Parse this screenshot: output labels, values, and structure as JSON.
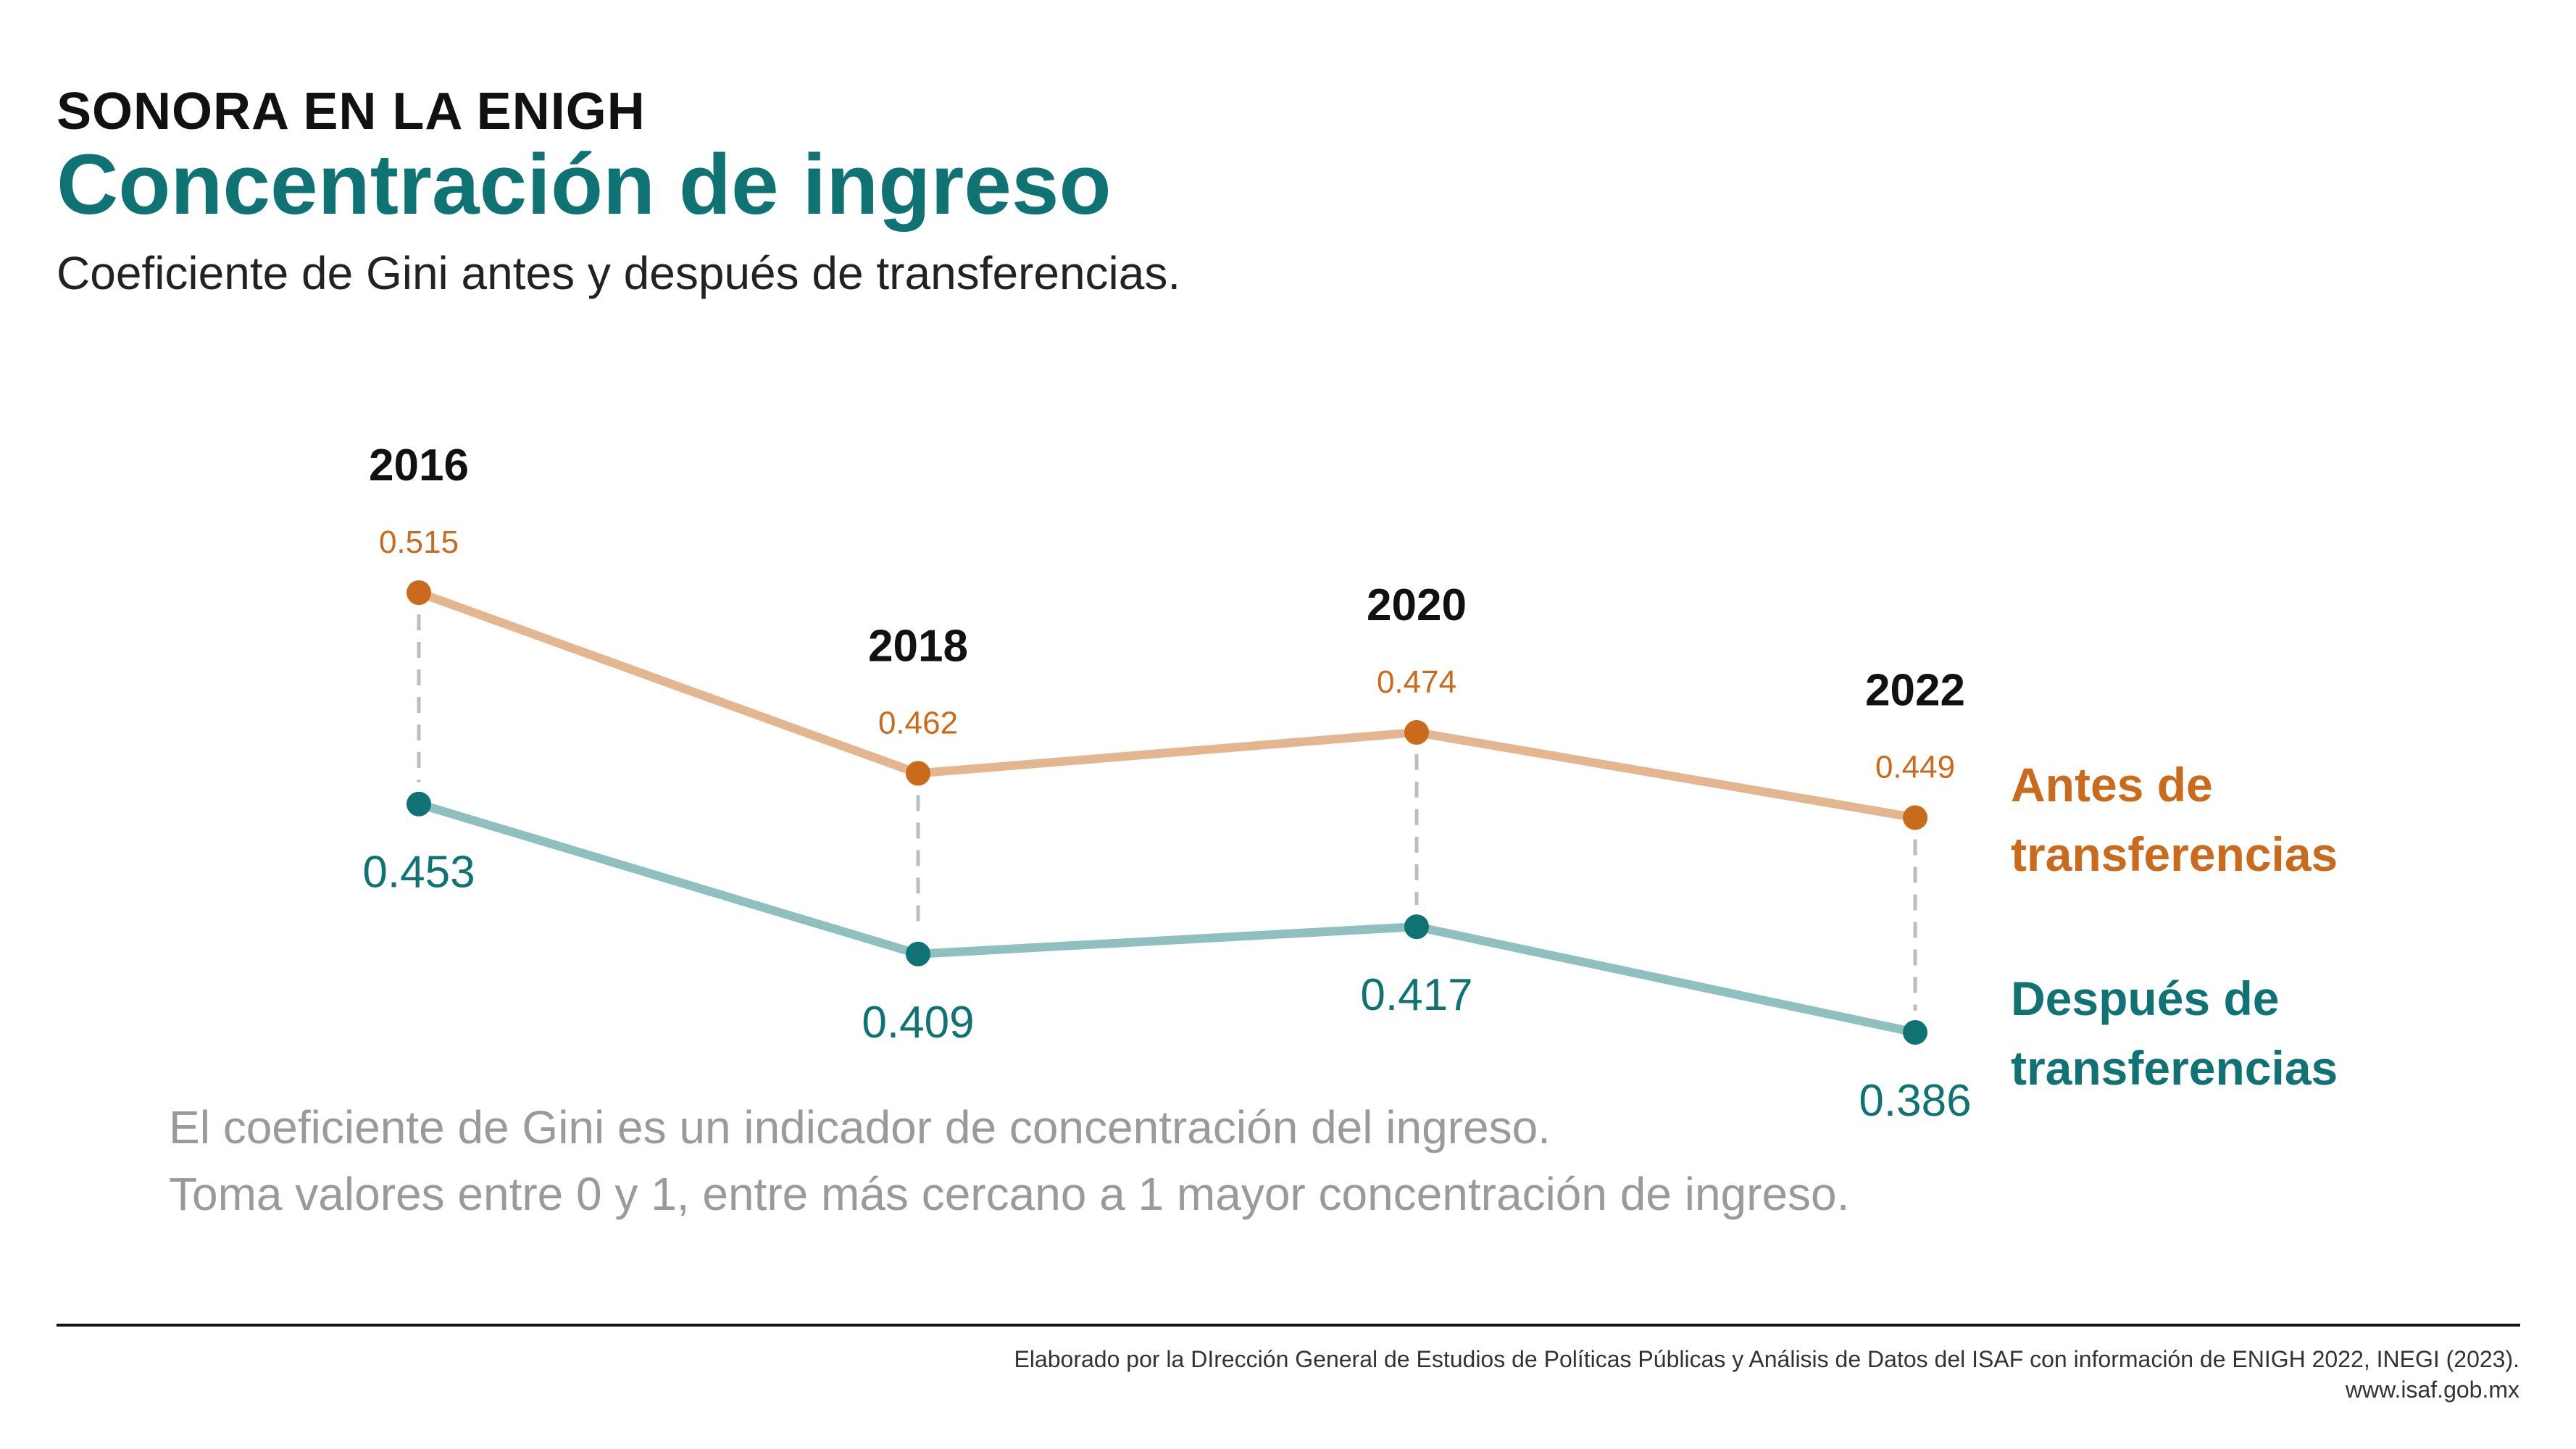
{
  "header": {
    "kicker": "SONORA EN LA ENIGH",
    "title": "Concentración de ingreso",
    "subtitle": "Coeficiente de Gini antes y después de transferencias."
  },
  "colors": {
    "before_point": "#c96a1c",
    "before_line": "#e4b68f",
    "after_point": "#0f7374",
    "after_line": "#8fbfbf",
    "connector": "#bdbdbd"
  },
  "chart_data": {
    "type": "line",
    "categories": [
      "2016",
      "2018",
      "2020",
      "2022"
    ],
    "series": [
      {
        "name": "Antes de transferencias",
        "values": [
          0.515,
          0.462,
          0.474,
          0.449
        ]
      },
      {
        "name": "Después de transferencias",
        "values": [
          0.453,
          0.409,
          0.417,
          0.386
        ]
      }
    ],
    "value_labels": {
      "before": [
        "0.515",
        "0.462",
        "0.474",
        "0.449"
      ],
      "after": [
        "0.453",
        "0.409",
        "0.417",
        "0.386"
      ]
    },
    "ylim": [
      0.386,
      0.515
    ],
    "grid": false,
    "legend": "right"
  },
  "legend": {
    "before": "Antes de transferencias",
    "after": "Después de transferencias"
  },
  "note": {
    "line1": "El coeficiente de Gini es un indicador de concentración del ingreso.",
    "line2": "Toma valores entre 0 y 1, entre más cercano a 1 mayor concentración de ingreso."
  },
  "footer": {
    "credit": "Elaborado por la DIrección General de Estudios de Políticas Públicas y Análisis de Datos del ISAF con información de ENIGH 2022, INEGI (2023).",
    "url": "www.isaf.gob.mx"
  }
}
